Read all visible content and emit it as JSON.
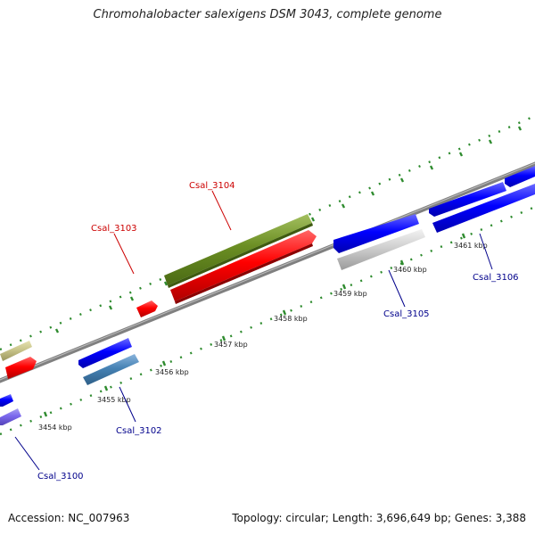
{
  "title": "Chromohalobacter salexigens DSM 3043, complete genome",
  "footer": {
    "accession": "Accession: NC_007963",
    "topology": "Topology: circular; Length: 3,696,649 bp; Genes: 3,388"
  },
  "colors": {
    "backbone": "#808080",
    "tick": "#2e8b2e",
    "label_red": "#cc0000",
    "label_blue": "#00008b"
  },
  "scale_labels": [
    "3454 kbp",
    "3455 kbp",
    "3456 kbp",
    "3457 kbp",
    "3458 kbp",
    "3459 kbp",
    "3460 kbp",
    "3461 kbp"
  ],
  "gene_labels": [
    {
      "text": "Csal_3100",
      "color": "blue"
    },
    {
      "text": "Csal_3102",
      "color": "blue"
    },
    {
      "text": "Csal_3103",
      "color": "red"
    },
    {
      "text": "Csal_3104",
      "color": "red"
    },
    {
      "text": "Csal_3105",
      "color": "blue"
    },
    {
      "text": "Csal_3106",
      "color": "blue"
    }
  ]
}
